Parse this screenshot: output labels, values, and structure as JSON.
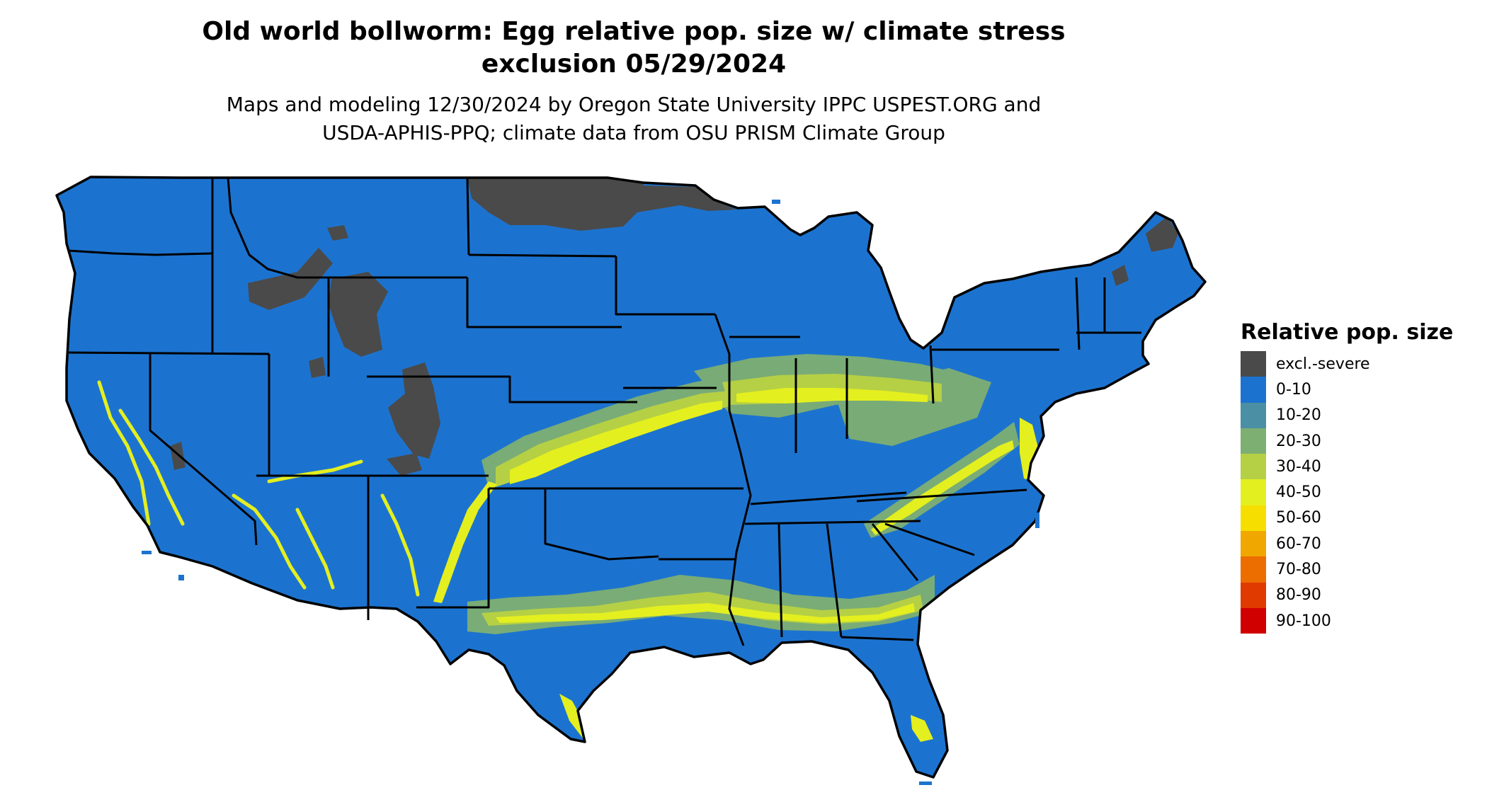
{
  "title": {
    "line1": "Old world bollworm: Egg relative pop. size w/ climate stress",
    "line2": "exclusion 05/29/2024"
  },
  "subtitle": {
    "line1": "Maps and modeling 12/30/2024 by Oregon State University IPPC USPEST.ORG and",
    "line2": "USDA-APHIS-PPQ; climate data from OSU PRISM Climate Group"
  },
  "legend": {
    "title": "Relative pop. size",
    "items": [
      {
        "label": "excl.-severe",
        "color": "#4a4a4a"
      },
      {
        "label": "0-10",
        "color": "#1c73cf"
      },
      {
        "label": "10-20",
        "color": "#4a8fa3"
      },
      {
        "label": "20-30",
        "color": "#7eaf72"
      },
      {
        "label": "30-40",
        "color": "#b5d044"
      },
      {
        "label": "40-50",
        "color": "#e4ef1f"
      },
      {
        "label": "50-60",
        "color": "#f6df00"
      },
      {
        "label": "60-70",
        "color": "#f0a800"
      },
      {
        "label": "70-80",
        "color": "#ec6d00"
      },
      {
        "label": "80-90",
        "color": "#e13a00"
      },
      {
        "label": "90-100",
        "color": "#d00000"
      }
    ]
  },
  "map": {
    "region": "Contiguous United States",
    "base_color": "#1c73cf",
    "excluded_color": "#4a4a4a",
    "border_color": "#000000"
  }
}
